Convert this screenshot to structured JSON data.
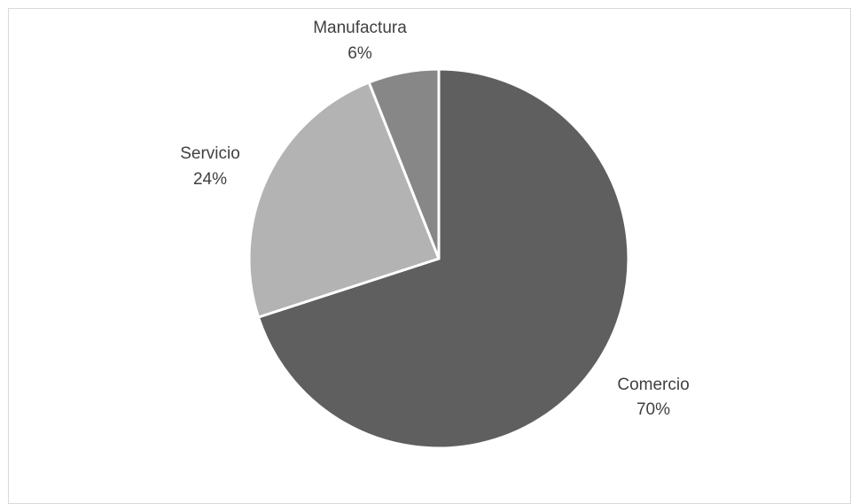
{
  "chart_data": {
    "type": "pie",
    "title": "",
    "slices": [
      {
        "label": "Comercio",
        "value": 70,
        "value_label": "70%",
        "color": "#5f5f5f"
      },
      {
        "label": "Servicio",
        "value": 24,
        "value_label": "24%",
        "color": "#b3b3b3"
      },
      {
        "label": "Manufactura",
        "value": 6,
        "value_label": "6%",
        "color": "#878787"
      }
    ],
    "start_angle_deg": 0,
    "direction": "clockwise",
    "slice_separator_color": "#ffffff",
    "legend": "none",
    "data_labels": "outside"
  }
}
